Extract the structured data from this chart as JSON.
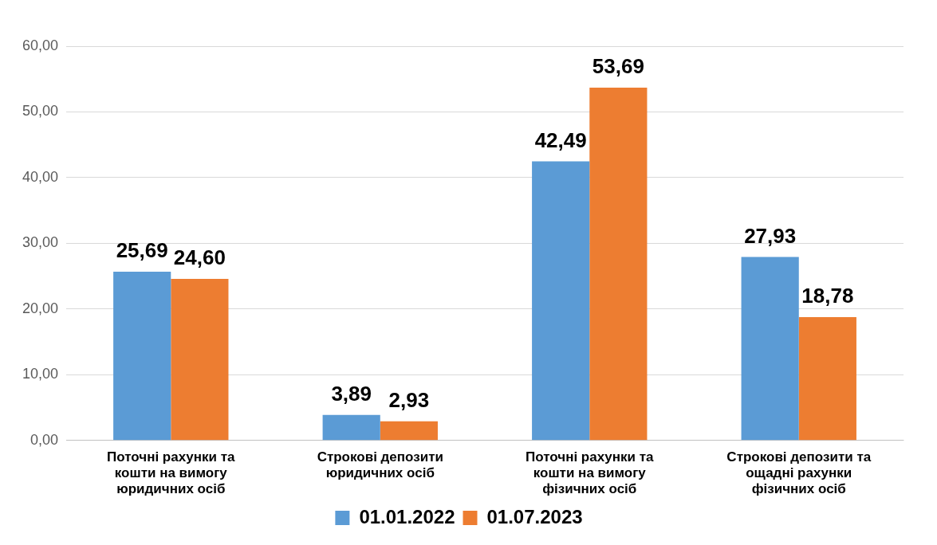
{
  "chart_data": {
    "type": "bar",
    "categories": [
      "Поточні рахунки та кошти на вимогу юридичних осіб",
      "Строкові депозити юридичних осіб",
      "Поточні рахунки та кошти на вимогу фізичних осіб",
      "Строкові депозити та ощадні рахунки фізичних осіб"
    ],
    "series": [
      {
        "name": "01.01.2022",
        "color": "#5b9bd5",
        "values": [
          25.69,
          3.89,
          42.49,
          27.93
        ],
        "value_labels": [
          "25,69",
          "3,89",
          "42,49",
          "27,93"
        ]
      },
      {
        "name": "01.07.2023",
        "color": "#ed7d31",
        "values": [
          24.6,
          2.93,
          53.69,
          18.78
        ],
        "value_labels": [
          "24,60",
          "2,93",
          "53,69",
          "18,78"
        ]
      }
    ],
    "ylim": [
      0,
      60
    ],
    "yticks": [
      {
        "value": 0,
        "label": "0,00"
      },
      {
        "value": 10,
        "label": "10,00"
      },
      {
        "value": 20,
        "label": "20,00"
      },
      {
        "value": 30,
        "label": "30,00"
      },
      {
        "value": 40,
        "label": "40,00"
      },
      {
        "value": 50,
        "label": "50,00"
      },
      {
        "value": 60,
        "label": "60,00"
      }
    ],
    "grid": "y",
    "legend": "bottom"
  }
}
